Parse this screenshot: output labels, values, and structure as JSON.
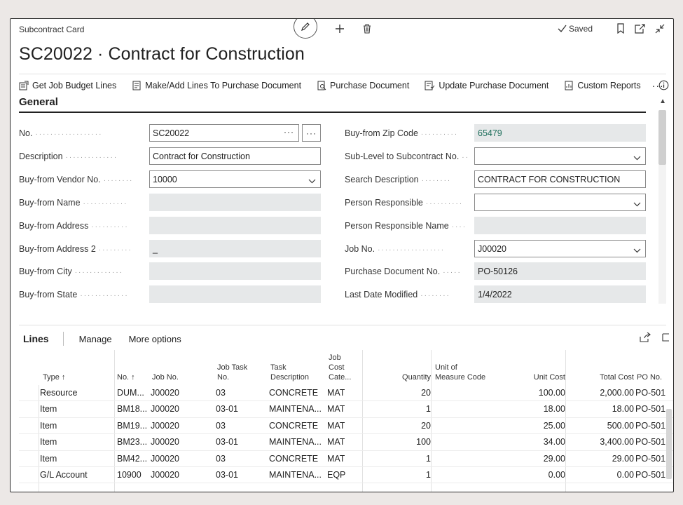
{
  "topbar": {
    "caption": "Subcontract Card",
    "saved_label": "Saved",
    "icons": [
      "edit-icon",
      "add-icon",
      "delete-icon",
      "bookmark-icon",
      "open-new-window-icon",
      "collapse-icon"
    ]
  },
  "page_title": "SC20022 · Contract for Construction",
  "actions": {
    "get_job_budget_lines": "Get Job Budget Lines",
    "make_add_lines": "Make/Add Lines To Purchase Document",
    "purchase_document": "Purchase Document",
    "update_purchase_document": "Update Purchase Document",
    "custom_reports": "Custom Reports",
    "more": "···"
  },
  "general": {
    "heading": "General",
    "left_fields": [
      {
        "label": "No.",
        "value": "SC20022"
      },
      {
        "label": "Description",
        "value": "Contract for Construction"
      },
      {
        "label": "Buy-from Vendor No.",
        "value": "10000"
      },
      {
        "label": "Buy-from Name",
        "value": ""
      },
      {
        "label": "Buy-from Address",
        "value": ""
      },
      {
        "label": "Buy-from Address 2",
        "value": "_"
      },
      {
        "label": "Buy-from City",
        "value": ""
      },
      {
        "label": "Buy-from State",
        "value": ""
      }
    ],
    "right_fields": [
      {
        "label": "Buy-from Zip Code",
        "value": "65479"
      },
      {
        "label": "Sub-Level to Subcontract No.",
        "value": ""
      },
      {
        "label": "Search Description",
        "value": "CONTRACT FOR CONSTRUCTION"
      },
      {
        "label": "Person Responsible",
        "value": ""
      },
      {
        "label": "Person Responsible Name",
        "value": ""
      },
      {
        "label": "Job No.",
        "value": "J00020"
      },
      {
        "label": "Purchase Document No.",
        "value": "PO-50126"
      },
      {
        "label": "Last Date Modified",
        "value": "1/4/2022"
      }
    ],
    "ellipsis": "···"
  },
  "lines": {
    "title": "Lines",
    "manage": "Manage",
    "more_options": "More options",
    "headers": {
      "type": "Type ↑",
      "no": "No. ↑",
      "job_no": "Job No.",
      "job_task_no_1": "Job Task",
      "job_task_no_2": "No.",
      "task_desc_1": "Task",
      "task_desc_2": "Description",
      "job_cost_1": "Job",
      "job_cost_2": "Cost",
      "job_cost_3": "Cate...",
      "quantity": "Quantity",
      "uom_1": "Unit of",
      "uom_2": "Measure Code",
      "unit_cost": "Unit Cost",
      "total_cost": "Total Cost",
      "po_no": "PO No."
    },
    "rows": [
      {
        "type": "Resource",
        "no": "DUM...",
        "job_no": "J00020",
        "task": "03",
        "desc": "CONCRETE",
        "cat": "MAT",
        "qty": "20",
        "uom": "",
        "unit_cost": "100.00",
        "total": "2,000.00",
        "po": "PO-501"
      },
      {
        "type": "Item",
        "no": "BM18...",
        "job_no": "J00020",
        "task": "03-01",
        "desc": "MAINTENA...",
        "cat": "MAT",
        "qty": "1",
        "uom": "",
        "unit_cost": "18.00",
        "total": "18.00",
        "po": "PO-501"
      },
      {
        "type": "Item",
        "no": "BM19...",
        "job_no": "J00020",
        "task": "03",
        "desc": "CONCRETE",
        "cat": "MAT",
        "qty": "20",
        "uom": "",
        "unit_cost": "25.00",
        "total": "500.00",
        "po": "PO-501"
      },
      {
        "type": "Item",
        "no": "BM23...",
        "job_no": "J00020",
        "task": "03-01",
        "desc": "MAINTENA...",
        "cat": "MAT",
        "qty": "100",
        "uom": "",
        "unit_cost": "34.00",
        "total": "3,400.00",
        "po": "PO-501"
      },
      {
        "type": "Item",
        "no": "BM42...",
        "job_no": "J00020",
        "task": "03",
        "desc": "CONCRETE",
        "cat": "MAT",
        "qty": "1",
        "uom": "",
        "unit_cost": "29.00",
        "total": "29.00",
        "po": "PO-501"
      },
      {
        "type": "G/L Account",
        "no": "10900",
        "job_no": "J00020",
        "task": "03-01",
        "desc": "MAINTENA...",
        "cat": "EQP",
        "qty": "1",
        "uom": "",
        "unit_cost": "0.00",
        "total": "0.00",
        "po": "PO-501"
      }
    ]
  },
  "colors": {
    "readonly_field": "#e6e8e9",
    "zip_value": "#1f6f5c",
    "border": "#8a8a8a"
  }
}
